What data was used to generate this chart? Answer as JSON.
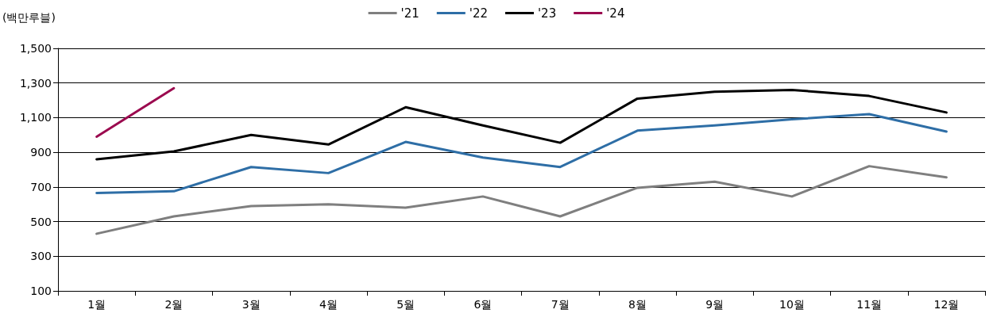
{
  "chart_data": {
    "type": "line",
    "ylabel": "(백만루블)",
    "categories": [
      "1월",
      "2월",
      "3월",
      "4월",
      "5월",
      "6월",
      "7월",
      "8월",
      "9월",
      "10월",
      "11월",
      "12월"
    ],
    "series": [
      {
        "name": "'21",
        "color": "#7f7f7f",
        "values": [
          430,
          530,
          590,
          600,
          580,
          645,
          530,
          695,
          730,
          645,
          820,
          755
        ]
      },
      {
        "name": "'22",
        "color": "#2e6ea6",
        "values": [
          665,
          675,
          815,
          780,
          960,
          870,
          815,
          1025,
          1055,
          1090,
          1120,
          1020
        ]
      },
      {
        "name": "'23",
        "color": "#000000",
        "values": [
          860,
          905,
          1000,
          945,
          1160,
          1055,
          955,
          1210,
          1250,
          1260,
          1225,
          1130
        ]
      },
      {
        "name": "'24",
        "color": "#9b0a4f",
        "values": [
          990,
          1270,
          null,
          null,
          null,
          null,
          null,
          null,
          null,
          null,
          null,
          null
        ]
      }
    ],
    "ylim": [
      100,
      1500
    ],
    "yticks": [
      100,
      300,
      500,
      700,
      900,
      {
        "value": 1100,
        "label": "1,100"
      },
      {
        "value": 1300,
        "label": "1,300"
      },
      {
        "value": 1500,
        "label": "1,500"
      }
    ],
    "grid": "y",
    "legend": "top",
    "marker": "none",
    "line_style": "solid"
  }
}
